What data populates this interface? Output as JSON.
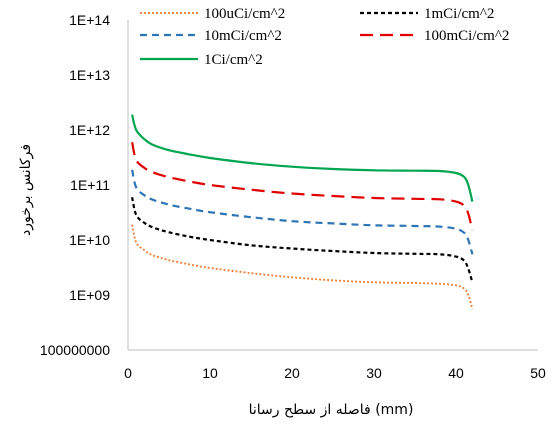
{
  "chart_data": {
    "type": "line",
    "title": "",
    "xlabel": "فاصله از سطح رسانا (mm)",
    "ylabel": "فرکانس برخورد",
    "xlim": [
      0,
      50
    ],
    "ylim": [
      100000000,
      100000000000000
    ],
    "y_scale": "log",
    "x_ticks": [
      "0",
      "10",
      "20",
      "30",
      "40",
      "50"
    ],
    "y_ticks": [
      "100000000",
      "1E+09",
      "1E+10",
      "1E+11",
      "1E+12",
      "1E+13",
      "1E+14"
    ],
    "grid": false,
    "legend_position": "top",
    "x": [
      0.5,
      1,
      2,
      3,
      5,
      7.5,
      10,
      15,
      20,
      25,
      30,
      35,
      38,
      40,
      41,
      41.5,
      42
    ],
    "series": [
      {
        "name": "100uCi/cm^2",
        "color": "#ED7D31",
        "dash": "dotted",
        "values": [
          19000000000.0,
          9000000000.0,
          6500000000.0,
          5300000000.0,
          4300000000.0,
          3600000000.0,
          3100000000.0,
          2500000000.0,
          2100000000.0,
          1850000000.0,
          1700000000.0,
          1650000000.0,
          1600000000.0,
          1500000000.0,
          1300000000.0,
          1000000000.0,
          550000000.0
        ]
      },
      {
        "name": "1mCi/cm^2",
        "color": "#000000",
        "dash": "short-dash",
        "values": [
          60000000000.0,
          28500000000.0,
          20500000000.0,
          17000000000.0,
          13800000000.0,
          11500000000.0,
          10000000000.0,
          8000000000.0,
          7000000000.0,
          6300000000.0,
          5800000000.0,
          5600000000.0,
          5500000000.0,
          5000000000.0,
          4200000000.0,
          3000000000.0,
          1700000000.0
        ]
      },
      {
        "name": "10mCi/cm^2",
        "color": "#2E75B6",
        "dash": "dash",
        "values": [
          190000000000.0,
          90000000000.0,
          65000000000.0,
          54000000000.0,
          44000000000.0,
          37000000000.0,
          32000000000.0,
          26000000000.0,
          22000000000.0,
          20000000000.0,
          18500000000.0,
          18000000000.0,
          17500000000.0,
          16000000000.0,
          13500000000.0,
          10000000000.0,
          5500000000.0
        ]
      },
      {
        "name": "100mCi/cm^2",
        "color": "#E00000",
        "dash": "long-dash",
        "values": [
          600000000000.0,
          285000000000.0,
          205000000000.0,
          170000000000.0,
          138000000000.0,
          116000000000.0,
          100000000000.0,
          82000000000.0,
          70000000000.0,
          63000000000.0,
          58000000000.0,
          56000000000.0,
          55000000000.0,
          50000000000.0,
          42000000000.0,
          30000000000.0,
          15000000000.0
        ]
      },
      {
        "name": "1Ci/cm^2",
        "color": "#00A550",
        "dash": "solid",
        "values": [
          1900000000000.0,
          1000000000000.0,
          680000000000.0,
          540000000000.0,
          430000000000.0,
          360000000000.0,
          310000000000.0,
          250000000000.0,
          215000000000.0,
          195000000000.0,
          185000000000.0,
          182000000000.0,
          180000000000.0,
          165000000000.0,
          140000000000.0,
          100000000000.0,
          50000000000.0
        ]
      }
    ]
  }
}
